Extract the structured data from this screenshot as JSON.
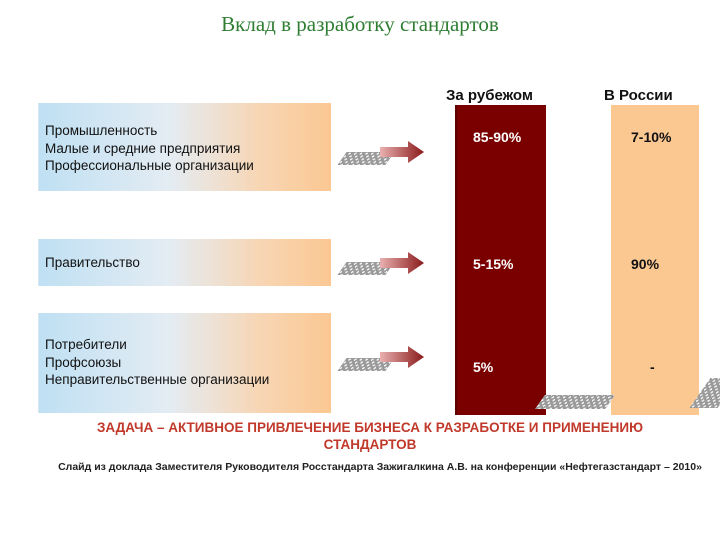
{
  "slide": {
    "title": "Вклад в разработку стандартов",
    "columns": {
      "abroad": "За рубежом",
      "russia": "В России"
    },
    "rows": [
      {
        "lines": [
          "Промышленность",
          "Малые и средние предприятия",
          "Профессиональные организации"
        ],
        "abroad": "85-90%",
        "russia": "7-10%"
      },
      {
        "lines": [
          "Правительство"
        ],
        "abroad": "5-15%",
        "russia": "90%"
      },
      {
        "lines": [
          "Потребители",
          "Профсоюзы",
          "Неправительственные организации"
        ],
        "abroad": "5%",
        "russia": "-"
      }
    ],
    "task": [
      "ЗАДАЧА – АКТИВНОЕ ПРИВЛЕЧЕНИЕ БИЗНЕСА К РАЗРАБОТКЕ  И ПРИМЕНЕНИЮ",
      "СТАНДАРТОВ"
    ],
    "source": "Слайд из доклада Заместителя Руководителя Росстандарта Зажигалкина А.В. на конференции «Нефтегазстандарт – 2010»",
    "colors": {
      "abroad_bar": "#7a0000",
      "russia_bar": "#fbc892",
      "title": "#2e7d32",
      "task": "#c0392b"
    }
  }
}
